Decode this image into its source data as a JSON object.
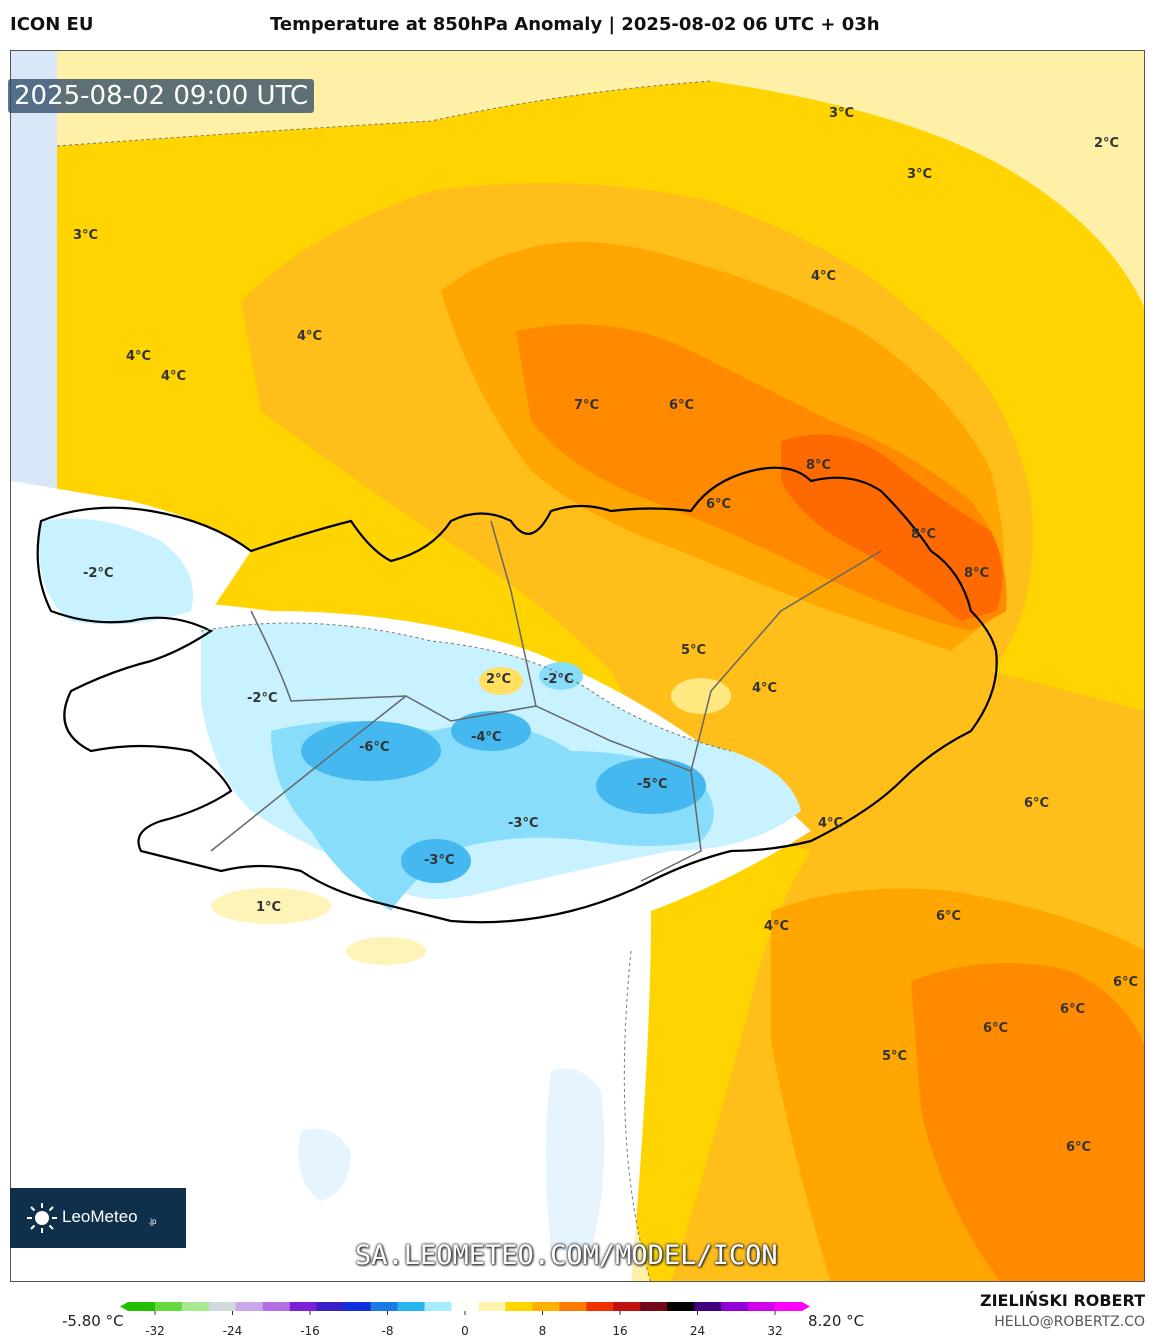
{
  "header": {
    "model": "ICON EU",
    "title": "Temperature at 850hPa Anomaly | 2025-08-02 06 UTC + 03h"
  },
  "map": {
    "timestamp": "2025-08-02 09:00 UTC",
    "watermark": "SA.LEOMETEO.COM/MODEL/ICON",
    "labels": [
      {
        "text": "3°C"
      },
      {
        "text": "2°C"
      },
      {
        "text": "3°C"
      },
      {
        "text": "3°C"
      },
      {
        "text": "4°C"
      },
      {
        "text": "4°C"
      },
      {
        "text": "4°C"
      },
      {
        "text": "4°C"
      },
      {
        "text": "7°C"
      },
      {
        "text": "6°C"
      },
      {
        "text": "8°C"
      },
      {
        "text": "6°C"
      },
      {
        "text": "8°C"
      },
      {
        "text": "8°C"
      },
      {
        "text": "-2°C"
      },
      {
        "text": "5°C"
      },
      {
        "text": "2°C"
      },
      {
        "text": "-2°C"
      },
      {
        "text": "4°C"
      },
      {
        "text": "-2°C"
      },
      {
        "text": "-6°C"
      },
      {
        "text": "-4°C"
      },
      {
        "text": "-5°C"
      },
      {
        "text": "-3°C"
      },
      {
        "text": "-3°C"
      },
      {
        "text": "4°C"
      },
      {
        "text": "6°C"
      },
      {
        "text": "1°C"
      },
      {
        "text": "4°C"
      },
      {
        "text": "6°C"
      },
      {
        "text": "6°C"
      },
      {
        "text": "6°C"
      },
      {
        "text": "6°C"
      },
      {
        "text": "5°C"
      },
      {
        "text": "6°C"
      }
    ]
  },
  "logo": {
    "name": "LeoMeteo",
    "suffix": ".jp"
  },
  "legend": {
    "min_label": "-5.80 °C",
    "max_label": "8.20 °C",
    "ticks": [
      "-32",
      "-24",
      "-16",
      "-8",
      "0",
      "8",
      "16",
      "24",
      "32"
    ],
    "colors": [
      "#22c000",
      "#66d840",
      "#a8e890",
      "#d0d8e0",
      "#c8a8e8",
      "#b070e0",
      "#7b20d8",
      "#3a1ec8",
      "#1030e0",
      "#1a7ae8",
      "#28b4f0",
      "#a8ecff",
      "#ffffff",
      "#fff3b0",
      "#ffd700",
      "#ffb000",
      "#ff7a00",
      "#f03000",
      "#c01010",
      "#700818",
      "#000000",
      "#400080",
      "#9000d8",
      "#d000e8",
      "#ff00ff"
    ]
  },
  "credits": {
    "author": "ZIELIŃSKI ROBERT",
    "email": "HELLO@ROBERTZ.CO"
  }
}
